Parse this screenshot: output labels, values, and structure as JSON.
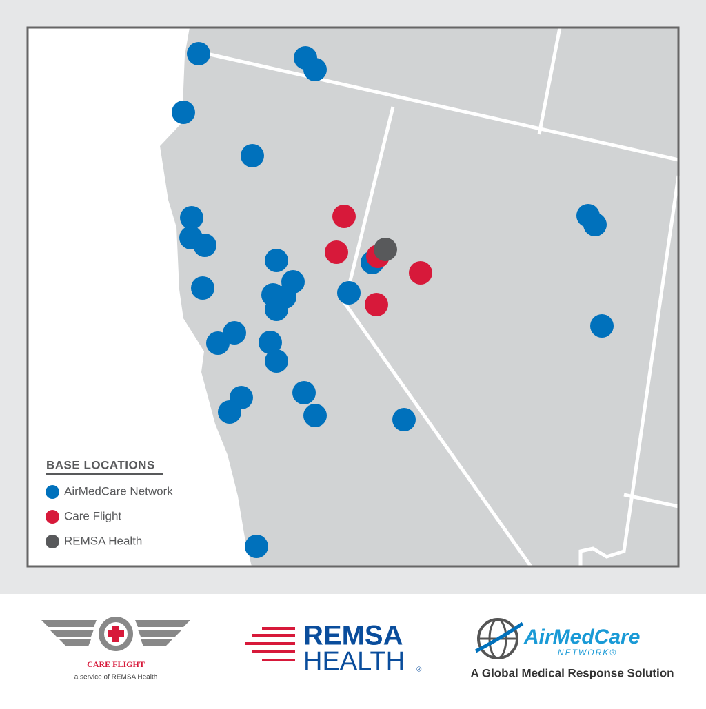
{
  "legend": {
    "title": "BASE LOCATIONS",
    "entries": [
      "AirMedCare Network",
      "Care Flight",
      "REMSA Health"
    ]
  },
  "logos": {
    "care_flight": {
      "name": "CARE FLIGHT",
      "tagline": "a service of REMSA Health"
    },
    "remsa": {
      "line1": "REMSA",
      "line2": "HEALTH",
      "mark": "®"
    },
    "airmedcare": {
      "name": "AirMedCare",
      "sub": "NETWORK®",
      "tagline": "A Global Medical Response Solution"
    }
  }
}
